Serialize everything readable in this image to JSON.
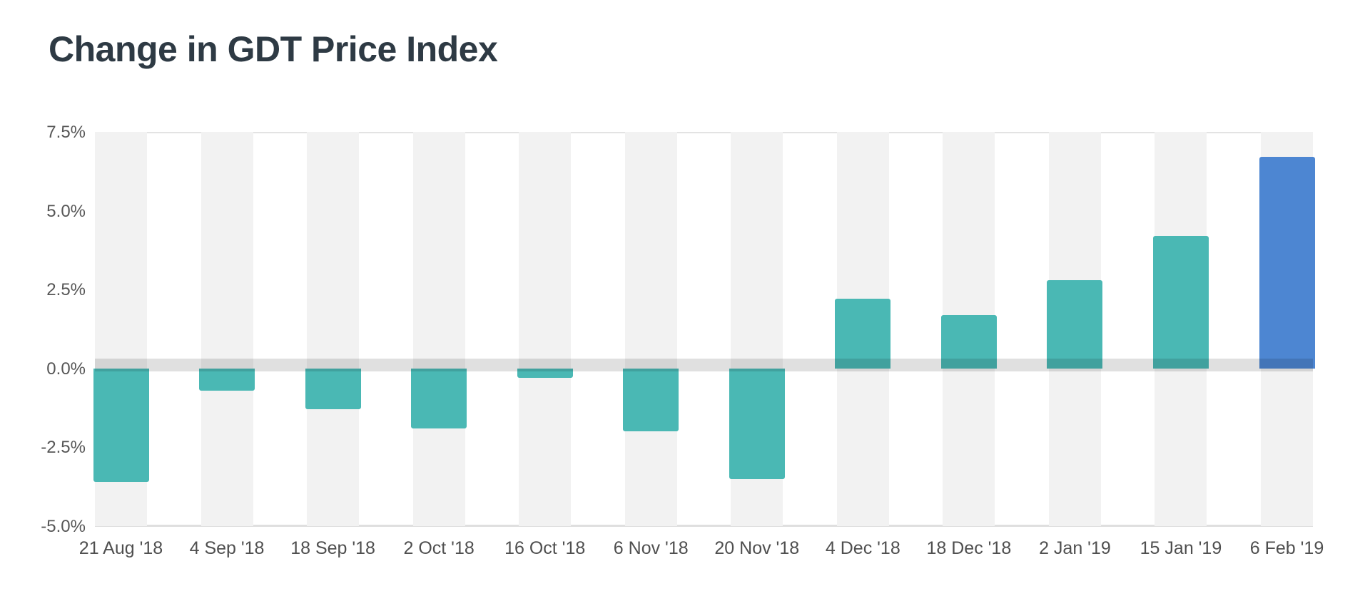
{
  "page": {
    "background": "#ffffff"
  },
  "chart_data": {
    "type": "bar",
    "title": "Change in GDT Price Index",
    "categories": [
      "21 Aug '18",
      "4 Sep '18",
      "18 Sep '18",
      "2 Oct '18",
      "16 Oct '18",
      "6 Nov '18",
      "20 Nov '18",
      "4 Dec '18",
      "18 Dec '18",
      "2 Jan '19",
      "15 Jan '19",
      "6 Feb '19"
    ],
    "values": [
      -3.6,
      -0.7,
      -1.3,
      -1.9,
      -0.3,
      -2.0,
      -3.5,
      2.2,
      1.7,
      2.8,
      4.2,
      6.7
    ],
    "unit": "%",
    "xlabel": "",
    "ylabel": "",
    "ylim": [
      -5.0,
      7.5
    ],
    "ytick_values": [
      7.5,
      5.0,
      2.5,
      0.0,
      -2.5,
      -5.0
    ],
    "ytick_labels": [
      "7.5%",
      "5.0%",
      "2.5%",
      "0.0%",
      "-2.5%",
      "-5.0%"
    ],
    "legend": "none",
    "grid": "top gridline and thick zero band; alternating light-gray column stripes behind bars",
    "colors": {
      "bar_default": "#4ab8b4",
      "bar_highlight": "#4d86d2",
      "highlight_index": 11,
      "stripe": "#f2f2f2",
      "zero_band_overlay": "rgba(0,0,0,0.12)",
      "top_gridline": "#e3e3e3",
      "axis_line": "#dfdfdf",
      "tick_text": "#565656",
      "title_text": "#2e3a44"
    }
  }
}
